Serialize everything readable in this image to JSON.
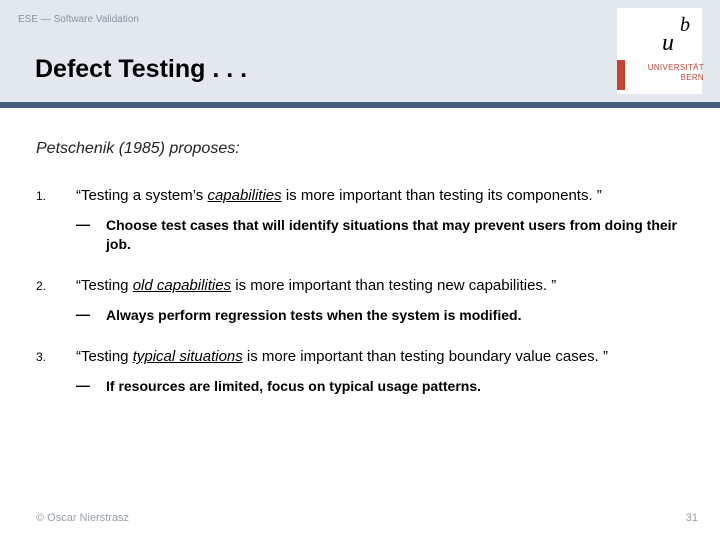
{
  "header": {
    "course_label": "ESE — Software Validation",
    "title": "Defect Testing . . .",
    "logo": {
      "b": "b",
      "u": "u",
      "uni_line1": "UNIVERSITÄT",
      "uni_line2": "BERN"
    }
  },
  "colors": {
    "header_bg": "#e2e8ee",
    "blue_bar": "#445e7a",
    "red": "#c84332",
    "muted": "#95a0aa"
  },
  "subtitle": "Petschenik (1985) proposes:",
  "items": [
    {
      "num": "1.",
      "quote_pre": "“Testing a system’s ",
      "quote_em": "capabilities",
      "quote_post": " is more important than testing its components. ”",
      "dash": "—",
      "sub": "Choose test cases that will identify situations that may prevent users from doing their job."
    },
    {
      "num": "2.",
      "quote_pre": "“Testing ",
      "quote_em": "old capabilities",
      "quote_post": " is more important than testing new capabilities. ”",
      "dash": "—",
      "sub": "Always perform regression tests when the system is modified."
    },
    {
      "num": "3.",
      "quote_pre": "“Testing ",
      "quote_em": "typical situations",
      "quote_post": " is more important than testing boundary value cases. ”",
      "dash": "—",
      "sub": "If resources are limited, focus on typical usage patterns."
    }
  ],
  "footer": "© Oscar Nierstrasz",
  "page_num": "31"
}
